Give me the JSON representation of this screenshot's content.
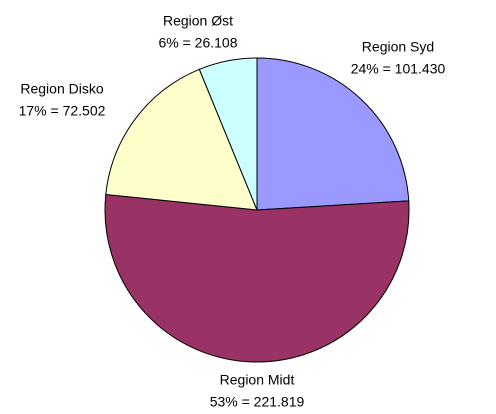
{
  "chart_data": {
    "type": "pie",
    "categories": [
      "Region Syd",
      "Region Midt",
      "Region Disko",
      "Region Øst"
    ],
    "values": [
      101430,
      221819,
      72502,
      26108
    ],
    "value_labels": [
      "24% = 101.430",
      "53% = 221.819",
      "17% = 72.502",
      "6% = 26.108"
    ],
    "colors": [
      "#9999ff",
      "#993366",
      "#ffffcc",
      "#ccffff"
    ]
  }
}
